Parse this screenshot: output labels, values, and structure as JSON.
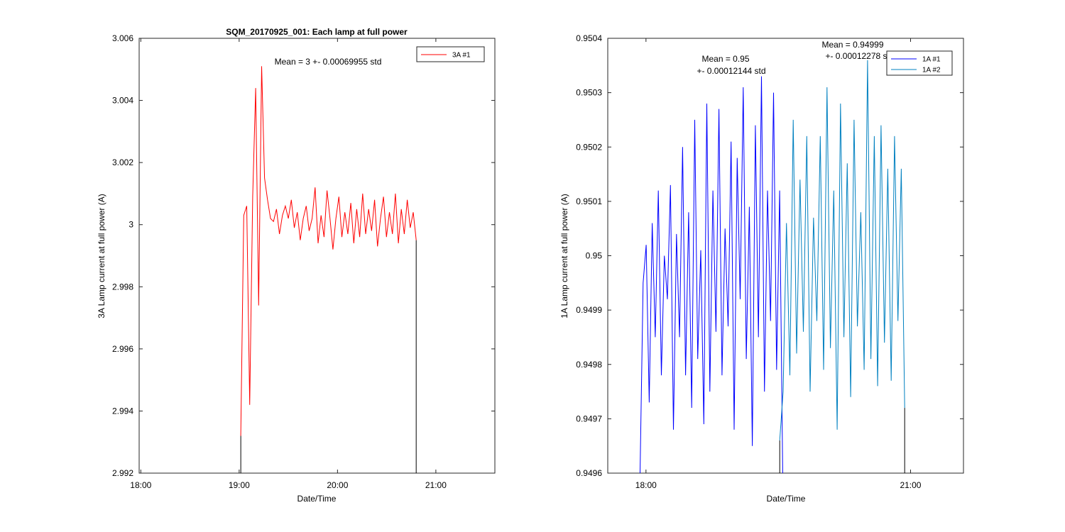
{
  "chart_data": [
    {
      "type": "line",
      "title": "SQM_20170925_001: Each lamp at full power",
      "xlabel": "Date/Time",
      "ylabel": "3A Lamp current at full power (A)",
      "xlim": [
        "17:59",
        "21:36"
      ],
      "ylim": [
        2.992,
        3.006
      ],
      "x_ticks": [
        "18:00",
        "19:00",
        "20:00",
        "21:00"
      ],
      "y_ticks": [
        "2.992",
        "2.994",
        "2.996",
        "2.998",
        "3",
        "3.002",
        "3.004",
        "3.006"
      ],
      "grid": false,
      "legend": "top-right",
      "annotations": [
        "Mean = 3 +- 0.00069955 std"
      ],
      "series": [
        {
          "name": "3A #1",
          "color": "#ff0000",
          "x_start": "19:01",
          "x_end": "20:48",
          "values": [
            2.9932,
            3.0003,
            3.0006,
            2.9942,
            3.0009,
            3.0044,
            2.9974,
            3.0051,
            3.0015,
            3.0008,
            3.0002,
            3.0001,
            3.0005,
            2.9997,
            3.0003,
            3.0006,
            3.0002,
            3.0008,
            2.9999,
            3.0004,
            2.9995,
            3.0002,
            3.0006,
            2.9998,
            3.0002,
            3.0012,
            2.9994,
            3.0003,
            2.9996,
            3.0011,
            3.0002,
            2.9992,
            3.0002,
            3.0009,
            2.9996,
            3.0004,
            2.9997,
            3.0007,
            2.9994,
            3.0005,
            2.9996,
            3.001,
            2.9997,
            3.0005,
            2.9998,
            3.0008,
            2.9993,
            3.0002,
            3.0009,
            2.9996,
            3.0004,
            2.9997,
            3.001,
            2.9994,
            3.0005,
            2.9997,
            3.0008,
            2.9999,
            3.0004,
            2.9995
          ]
        }
      ]
    },
    {
      "type": "line",
      "title": "",
      "xlabel": "Date/Time",
      "ylabel": "1A Lamp current at full power (A)",
      "xlim": [
        "17:34",
        "21:36"
      ],
      "ylim": [
        0.9496,
        0.9504
      ],
      "x_ticks": [
        "18:00",
        "21:00"
      ],
      "y_ticks": [
        "0.9496",
        "0.9497",
        "0.9498",
        "0.9499",
        "0.95",
        "0.9501",
        "0.9502",
        "0.9503",
        "0.9504"
      ],
      "grid": false,
      "legend": "top-right",
      "annotations": [
        "Mean = 0.95",
        "+- 0.00012144 std",
        "Mean = 0.94999",
        "+- 0.00012278 std"
      ],
      "series": [
        {
          "name": "1A #1",
          "color": "#0000ff",
          "x_start": "17:56",
          "x_end": "19:33",
          "values": [
            0.9496,
            0.94995,
            0.95002,
            0.94973,
            0.95006,
            0.94985,
            0.95012,
            0.94978,
            0.95,
            0.94992,
            0.95013,
            0.94968,
            0.95004,
            0.94985,
            0.9502,
            0.94978,
            0.95008,
            0.94972,
            0.95025,
            0.94981,
            0.95001,
            0.94969,
            0.95028,
            0.94975,
            0.95012,
            0.94986,
            0.95027,
            0.94978,
            0.95005,
            0.94987,
            0.95021,
            0.94968,
            0.95018,
            0.94992,
            0.95031,
            0.94981,
            0.95009,
            0.94965,
            0.95024,
            0.94985,
            0.95033,
            0.94975,
            0.95012,
            0.94988,
            0.9503,
            0.94979,
            0.95012,
            0.9496
          ]
        },
        {
          "name": "1A #2",
          "color": "#0080c0",
          "x_start": "19:31",
          "x_end": "20:56",
          "values": [
            0.94966,
            0.94975,
            0.95006,
            0.94978,
            0.95025,
            0.94982,
            0.95014,
            0.94986,
            0.95022,
            0.94975,
            0.95007,
            0.94988,
            0.95022,
            0.94979,
            0.95031,
            0.94983,
            0.95012,
            0.94968,
            0.95028,
            0.94985,
            0.95017,
            0.94974,
            0.95025,
            0.94987,
            0.95008,
            0.94979,
            0.95036,
            0.94981,
            0.95022,
            0.94976,
            0.95024,
            0.94984,
            0.95016,
            0.94977,
            0.95022,
            0.94988,
            0.95016,
            0.94972
          ]
        }
      ]
    }
  ]
}
